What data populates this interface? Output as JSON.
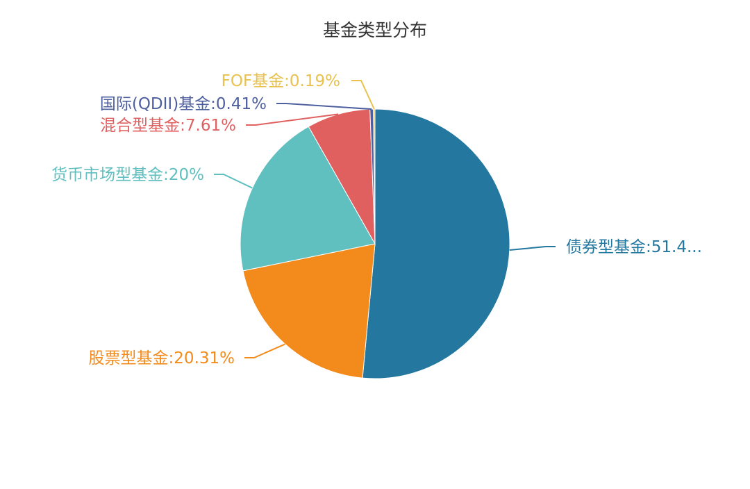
{
  "chart_data": {
    "type": "pie",
    "title": "基金类型分布",
    "slices": [
      {
        "name": "债券型基金",
        "value": 51.48,
        "label": "债券型基金:51.4...",
        "color": "#24779f"
      },
      {
        "name": "股票型基金",
        "value": 20.31,
        "label": "股票型基金:20.31%",
        "color": "#f28b1c"
      },
      {
        "name": "货币市场型基金",
        "value": 20.0,
        "label": "货币市场型基金:20%",
        "color": "#60bfbf"
      },
      {
        "name": "混合型基金",
        "value": 7.61,
        "label": "混合型基金:7.61%",
        "color": "#e06060"
      },
      {
        "name": "国际(QDII)基金",
        "value": 0.41,
        "label": "国际(QDII)基金:0.41%",
        "color": "#4e5fa0"
      },
      {
        "name": "FOF基金",
        "value": 0.19,
        "label": "FOF基金:0.19%",
        "color": "#e8c14e"
      }
    ]
  }
}
